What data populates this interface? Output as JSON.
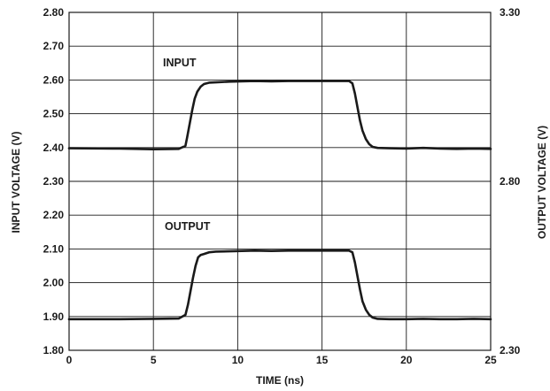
{
  "chart_data": {
    "type": "line",
    "title": "",
    "xlabel": "TIME (ns)",
    "ylabel": "INPUT VOLTAGE (V)",
    "y2label": "OUTPUT VOLTAGE (V)",
    "xlim": [
      0,
      25
    ],
    "ylim": [
      1.8,
      2.8
    ],
    "y2lim": [
      2.3,
      3.3
    ],
    "xticks": [
      "0",
      "5",
      "10",
      "15",
      "20",
      "25"
    ],
    "yticks": [
      "1.80",
      "1.90",
      "2.00",
      "2.10",
      "2.20",
      "2.30",
      "2.40",
      "2.50",
      "2.60",
      "2.70",
      "2.80"
    ],
    "y2ticks": [
      "2.30",
      "2.80",
      "3.30"
    ],
    "grid": true,
    "line_color": "#1a1a1a",
    "series": [
      {
        "name": "INPUT",
        "axis": "left",
        "x": [
          0,
          3,
          5,
          6.5,
          6.9,
          7.0,
          7.15,
          7.3,
          7.45,
          7.6,
          7.8,
          8.0,
          8.3,
          8.7,
          9.5,
          11,
          12,
          13,
          14.5,
          16,
          16.6,
          16.8,
          16.95,
          17.1,
          17.25,
          17.4,
          17.6,
          17.8,
          18.0,
          18.3,
          19,
          20,
          21,
          22,
          23,
          24,
          25
        ],
        "y": [
          2.398,
          2.397,
          2.395,
          2.396,
          2.405,
          2.43,
          2.47,
          2.51,
          2.545,
          2.565,
          2.58,
          2.588,
          2.592,
          2.593,
          2.595,
          2.597,
          2.596,
          2.597,
          2.597,
          2.597,
          2.597,
          2.59,
          2.56,
          2.52,
          2.48,
          2.45,
          2.425,
          2.41,
          2.402,
          2.399,
          2.398,
          2.397,
          2.399,
          2.397,
          2.396,
          2.397,
          2.396
        ]
      },
      {
        "name": "OUTPUT",
        "axis": "left",
        "x": [
          0,
          3,
          5,
          6.5,
          6.9,
          7.05,
          7.2,
          7.35,
          7.5,
          7.65,
          7.8,
          8.0,
          8.3,
          8.7,
          9.5,
          11,
          12,
          13,
          14.5,
          16,
          16.6,
          16.8,
          16.95,
          17.1,
          17.25,
          17.4,
          17.6,
          17.8,
          18.0,
          18.3,
          19,
          20,
          21,
          22,
          23,
          24,
          25
        ],
        "y": [
          1.892,
          1.892,
          1.893,
          1.894,
          1.905,
          1.935,
          1.975,
          2.015,
          2.05,
          2.075,
          2.082,
          2.085,
          2.09,
          2.092,
          2.093,
          2.095,
          2.094,
          2.095,
          2.095,
          2.095,
          2.095,
          2.09,
          2.06,
          2.02,
          1.98,
          1.945,
          1.92,
          1.905,
          1.897,
          1.893,
          1.892,
          1.892,
          1.893,
          1.892,
          1.892,
          1.893,
          1.892
        ]
      }
    ],
    "annotations": [
      "INPUT",
      "OUTPUT"
    ]
  }
}
